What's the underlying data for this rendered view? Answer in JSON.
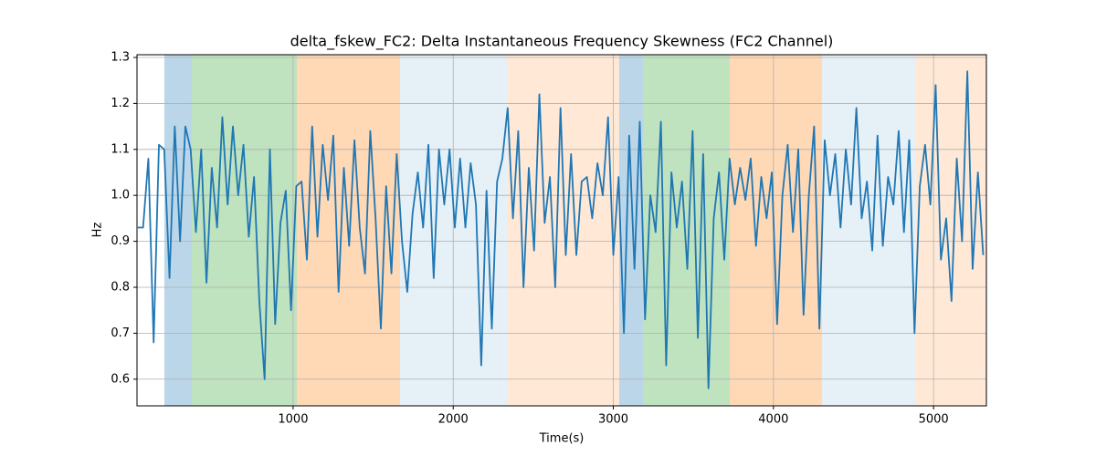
{
  "chart_data": {
    "type": "line",
    "title": "delta_fskew_FC2: Delta Instantaneous Frequency Skewness (FC2 Channel)",
    "xlabel": "Time(s)",
    "ylabel": "Hz",
    "xlim": [
      25,
      5330
    ],
    "ylim": [
      0.542,
      1.306
    ],
    "xticks": [
      1000,
      2000,
      3000,
      4000,
      5000
    ],
    "yticks": [
      0.6,
      0.7,
      0.8,
      0.9,
      {
        "value": 1,
        "label": "1.0"
      },
      1.1,
      1.2,
      1.3
    ],
    "grid": true,
    "regions": [
      {
        "x0": 196,
        "x1": 367,
        "color": "#1f77b4",
        "alpha": 0.3
      },
      {
        "x0": 367,
        "x1": 1023,
        "color": "#2ca02c",
        "alpha": 0.3
      },
      {
        "x0": 1023,
        "x1": 1668,
        "color": "#ff7f0e",
        "alpha": 0.3
      },
      {
        "x0": 1668,
        "x1": 2341,
        "color": "#1f77b4",
        "alpha": 0.11
      },
      {
        "x0": 2341,
        "x1": 3037,
        "color": "#ff7f0e",
        "alpha": 0.17
      },
      {
        "x0": 3037,
        "x1": 3185,
        "color": "#1f77b4",
        "alpha": 0.3
      },
      {
        "x0": 3185,
        "x1": 3727,
        "color": "#2ca02c",
        "alpha": 0.3
      },
      {
        "x0": 3727,
        "x1": 4303,
        "color": "#ff7f0e",
        "alpha": 0.3
      },
      {
        "x0": 4303,
        "x1": 4885,
        "color": "#1f77b4",
        "alpha": 0.11
      },
      {
        "x0": 4885,
        "x1": 5330,
        "color": "#ff7f0e",
        "alpha": 0.17
      }
    ],
    "x": [
      30,
      63,
      96,
      129,
      162,
      195,
      228,
      261,
      294,
      327,
      360,
      393,
      426,
      459,
      492,
      525,
      558,
      591,
      624,
      657,
      690,
      723,
      756,
      789,
      822,
      855,
      888,
      921,
      954,
      987,
      1020,
      1053,
      1086,
      1119,
      1152,
      1185,
      1218,
      1251,
      1284,
      1317,
      1350,
      1383,
      1416,
      1449,
      1482,
      1515,
      1548,
      1581,
      1614,
      1647,
      1680,
      1713,
      1746,
      1779,
      1812,
      1845,
      1878,
      1911,
      1944,
      1977,
      2010,
      2043,
      2076,
      2109,
      2142,
      2175,
      2208,
      2241,
      2274,
      2307,
      2340,
      2373,
      2406,
      2439,
      2472,
      2505,
      2538,
      2571,
      2604,
      2637,
      2670,
      2703,
      2736,
      2769,
      2802,
      2835,
      2868,
      2901,
      2934,
      2967,
      3000,
      3033,
      3066,
      3099,
      3132,
      3165,
      3198,
      3231,
      3264,
      3297,
      3330,
      3363,
      3396,
      3429,
      3462,
      3495,
      3528,
      3561,
      3594,
      3627,
      3660,
      3693,
      3726,
      3759,
      3792,
      3825,
      3858,
      3891,
      3924,
      3957,
      3990,
      4023,
      4056,
      4089,
      4122,
      4155,
      4188,
      4221,
      4254,
      4287,
      4320,
      4353,
      4386,
      4419,
      4452,
      4485,
      4518,
      4551,
      4584,
      4617,
      4650,
      4683,
      4716,
      4749,
      4782,
      4815,
      4848,
      4881,
      4914,
      4947,
      4980,
      5013,
      5046,
      5079,
      5112,
      5145,
      5178,
      5211,
      5244,
      5277,
      5310
    ],
    "series": [
      {
        "color": "#1f77b4",
        "values": [
          0.93,
          0.93,
          1.08,
          0.68,
          1.11,
          1.1,
          0.82,
          1.15,
          0.9,
          1.15,
          1.1,
          0.92,
          1.1,
          0.81,
          1.06,
          0.93,
          1.17,
          0.98,
          1.15,
          1.0,
          1.11,
          0.91,
          1.04,
          0.77,
          0.6,
          1.1,
          0.72,
          0.94,
          1.01,
          0.75,
          1.02,
          1.03,
          0.86,
          1.15,
          0.91,
          1.11,
          0.99,
          1.13,
          0.79,
          1.06,
          0.89,
          1.12,
          0.93,
          0.83,
          1.14,
          0.95,
          0.71,
          1.02,
          0.83,
          1.09,
          0.9,
          0.79,
          0.96,
          1.05,
          0.93,
          1.11,
          0.82,
          1.1,
          0.98,
          1.1,
          0.93,
          1.08,
          0.93,
          1.07,
          0.98,
          0.63,
          1.01,
          0.71,
          1.03,
          1.08,
          1.19,
          0.95,
          1.14,
          0.8,
          1.06,
          0.88,
          1.22,
          0.94,
          1.04,
          0.8,
          1.19,
          0.87,
          1.09,
          0.87,
          1.03,
          1.04,
          0.95,
          1.07,
          1.0,
          1.17,
          0.87,
          1.04,
          0.7,
          1.13,
          0.84,
          1.16,
          0.73,
          1.0,
          0.92,
          1.16,
          0.63,
          1.05,
          0.93,
          1.03,
          0.84,
          1.14,
          0.69,
          1.09,
          0.58,
          0.95,
          1.05,
          0.86,
          1.08,
          0.98,
          1.06,
          0.99,
          1.08,
          0.89,
          1.04,
          0.95,
          1.05,
          0.72,
          1.0,
          1.11,
          0.92,
          1.1,
          0.74,
          1.0,
          1.15,
          0.71,
          1.12,
          1.0,
          1.09,
          0.93,
          1.1,
          0.98,
          1.19,
          0.95,
          1.03,
          0.88,
          1.13,
          0.89,
          1.04,
          0.98,
          1.14,
          0.92,
          1.12,
          0.7,
          1.02,
          1.11,
          0.98,
          1.24,
          0.86,
          0.95,
          0.77,
          1.08,
          0.9,
          1.27,
          0.84,
          1.05,
          0.87
        ]
      }
    ]
  }
}
